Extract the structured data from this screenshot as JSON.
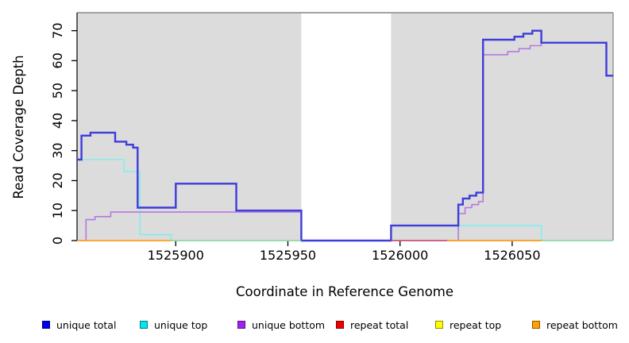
{
  "chart_data": {
    "type": "line",
    "step": true,
    "title": "",
    "xlabel": "Coordinate in Reference Genome",
    "ylabel": "Read Coverage Depth",
    "xlim": [
      1525856,
      1526095
    ],
    "ylim": [
      0,
      76
    ],
    "x_ticks": [
      1525900,
      1525950,
      1526000,
      1526050
    ],
    "y_ticks": [
      0,
      10,
      20,
      30,
      40,
      50,
      60,
      70
    ],
    "grid": false,
    "legend_position": "bottom",
    "plot_bg": "#dcdcdc",
    "masked_region": {
      "x0": 1525956,
      "x1": 1525996,
      "color": "#ffffff"
    },
    "series": [
      {
        "name": "unique total",
        "legend_color": "#0000ee",
        "line_color": "#3d3dda",
        "width": 2.4,
        "segments": [
          [
            [
              1525856,
              27
            ],
            [
              1525858,
              35
            ],
            [
              1525862,
              36
            ],
            [
              1525873,
              33
            ],
            [
              1525878,
              32
            ],
            [
              1525881,
              31
            ],
            [
              1525883,
              11
            ],
            [
              1525900,
              19
            ],
            [
              1525927,
              10
            ],
            [
              1525956,
              0
            ],
            [
              1525996,
              5
            ],
            [
              1526026,
              12
            ],
            [
              1526028,
              14
            ],
            [
              1526031,
              15
            ],
            [
              1526034,
              16
            ],
            [
              1526037,
              67
            ],
            [
              1526051,
              68
            ],
            [
              1526055,
              69
            ],
            [
              1526059,
              70
            ],
            [
              1526063,
              66
            ],
            [
              1526092,
              55
            ],
            [
              1526095,
              55
            ]
          ]
        ]
      },
      {
        "name": "unique top",
        "legend_color": "#00e5ee",
        "line_color": "#84edef",
        "width": 1.6,
        "segments": [
          [
            [
              1525856,
              27
            ],
            [
              1525877,
              23
            ],
            [
              1525884,
              2
            ],
            [
              1525898,
              0
            ],
            [
              1526026,
              5
            ],
            [
              1526063,
              0
            ],
            [
              1526095,
              0
            ]
          ]
        ]
      },
      {
        "name": "unique bottom",
        "legend_color": "#a020f0",
        "line_color": "#b678e2",
        "width": 1.6,
        "segments": [
          [
            [
              1525856,
              0
            ],
            [
              1525860,
              7
            ],
            [
              1525864,
              8
            ],
            [
              1525871,
              9.5
            ],
            [
              1525956,
              0
            ],
            [
              1526026,
              9
            ],
            [
              1526029,
              11
            ],
            [
              1526032,
              12
            ],
            [
              1526035,
              13
            ],
            [
              1526037,
              62
            ],
            [
              1526048,
              63
            ],
            [
              1526053,
              64
            ],
            [
              1526058,
              65
            ],
            [
              1526063,
              66
            ],
            [
              1526092,
              55
            ],
            [
              1526095,
              55
            ]
          ]
        ]
      },
      {
        "name": "repeat total",
        "legend_color": "#ee0000",
        "line_color": "#d44a6a",
        "width": 1.6,
        "segments": [
          [
            [
              1525996,
              0
            ],
            [
              1526063,
              0
            ]
          ]
        ]
      },
      {
        "name": "repeat top",
        "legend_color": "#ffff00",
        "line_color": "#ffee00",
        "width": 1.6,
        "segments": [
          [
            [
              1525856,
              0
            ],
            [
              1525898,
              0
            ]
          ],
          [
            [
              1526021,
              0
            ],
            [
              1526063,
              0
            ]
          ]
        ]
      },
      {
        "name": "repeat bottom",
        "legend_color": "#ffa000",
        "line_color": "#ff9e2c",
        "width": 1.8,
        "segments": [
          [
            [
              1525856,
              0
            ],
            [
              1525898,
              0
            ]
          ],
          [
            [
              1526021,
              0
            ],
            [
              1526063,
              0
            ]
          ]
        ]
      }
    ],
    "unlabeled_baseline": {
      "name": "baseline (unlabeled)",
      "line_color": "#90d596",
      "width": 1.6,
      "segments": [
        [
          [
            1525898,
            0
          ],
          [
            1525956,
            0
          ]
        ],
        [
          [
            1526063,
            0
          ],
          [
            1526095,
            0
          ]
        ]
      ]
    }
  },
  "legend": {
    "items": [
      {
        "label": "unique total"
      },
      {
        "label": "unique top"
      },
      {
        "label": "unique bottom"
      },
      {
        "label": "repeat total"
      },
      {
        "label": "repeat top"
      },
      {
        "label": "repeat bottom"
      }
    ]
  }
}
